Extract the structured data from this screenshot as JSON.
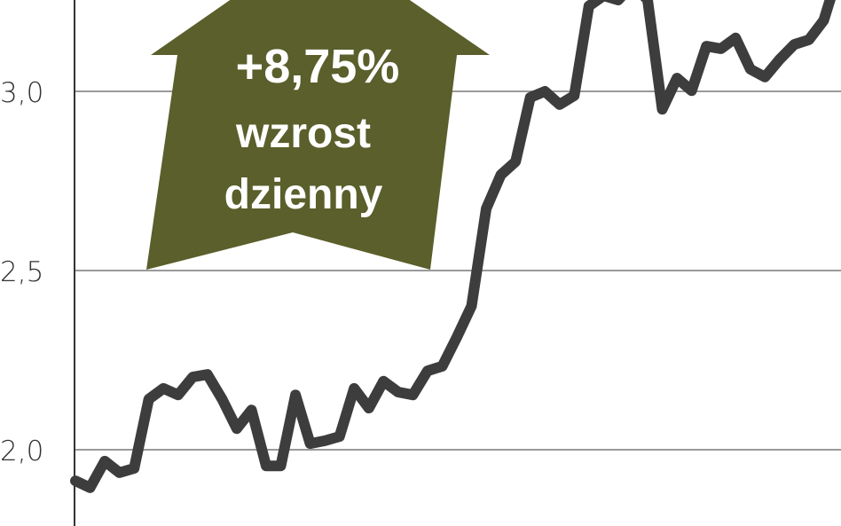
{
  "chart_data": {
    "type": "line",
    "title": "",
    "xlabel": "",
    "ylabel": "",
    "ylim": [
      1.79,
      3.255
    ],
    "y_ticks": [
      "2,0",
      "2,5",
      "3,0"
    ],
    "y_tick_values": [
      2.0,
      2.5,
      3.0
    ],
    "grid": "horizontal",
    "line_color": "#3d3d3d",
    "values": [
      1.913,
      1.894,
      1.968,
      1.936,
      1.948,
      2.141,
      2.171,
      2.153,
      2.203,
      2.21,
      2.141,
      2.059,
      2.111,
      1.955,
      1.955,
      2.153,
      2.017,
      2.025,
      2.037,
      2.171,
      2.116,
      2.191,
      2.161,
      2.153,
      2.22,
      2.233,
      2.314,
      2.401,
      2.673,
      2.767,
      2.804,
      2.983,
      3.0,
      2.963,
      2.988,
      3.238,
      3.267,
      3.255,
      3.3,
      3.255,
      2.95,
      3.037,
      3.002,
      3.126,
      3.119,
      3.149,
      3.062,
      3.04,
      3.089,
      3.131,
      3.144,
      3.198,
      3.33
    ]
  },
  "annotation": {
    "change": "+8,75%",
    "line1": "wzrost",
    "line2": "dzienny",
    "color": "#5a5f2b",
    "direction": "up"
  }
}
